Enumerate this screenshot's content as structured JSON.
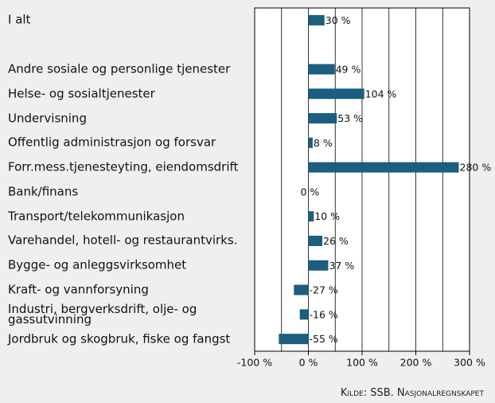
{
  "chart_data": {
    "type": "bar",
    "orientation": "horizontal",
    "categories": [
      "I alt",
      null,
      "Andre sosiale og personlige tjenester",
      "Helse- og sosialtjenester",
      "Undervisning",
      "Offentlig administrasjon og forsvar",
      "Forr.mess.tjenesteyting, eiendomsdrift",
      "Bank/finans",
      "Transport/telekommunikasjon",
      "Varehandel, hotell- og restaurantvirks.",
      "Bygge- og anleggsvirksomhet",
      "Kraft- og vannforsyning",
      "Industri, bergverksdrift, olje- og\ngassutvinning",
      "Jordbruk og skogbruk, fiske og fangst"
    ],
    "values": [
      30,
      null,
      49,
      104,
      53,
      8,
      280,
      0,
      10,
      26,
      37,
      -27,
      -16,
      -55
    ],
    "value_labels": [
      "30 %",
      null,
      "49 %",
      "104 %",
      "53 %",
      "8 %",
      "280 %",
      "0 %",
      "10 %",
      "26 %",
      "37 %",
      "-27 %",
      "-16 %",
      "-55 %"
    ],
    "color": "#1b5e80",
    "xlim": [
      -100,
      300
    ],
    "xticks": [
      {
        "value": -100,
        "label": "-100 %"
      },
      {
        "value": 0,
        "label": "0 %"
      },
      {
        "value": 100,
        "label": "100 %"
      },
      {
        "value": 200,
        "label": "200 %"
      },
      {
        "value": 300,
        "label": "300 %"
      }
    ],
    "minor_xticks": [
      -50,
      50,
      150,
      250
    ],
    "grid": true,
    "source": "Kilde: SSB. Nasjonalregnskapet"
  }
}
